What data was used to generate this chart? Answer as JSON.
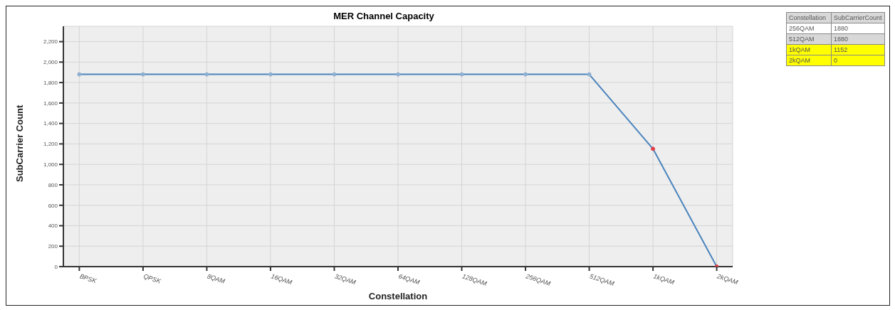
{
  "chart_data": {
    "type": "line",
    "title": "MER Channel Capacity",
    "xlabel": "Constellation",
    "ylabel": "SubCarrier Count",
    "categories": [
      "BPSK",
      "QPSK",
      "8QAM",
      "16QAM",
      "32QAM",
      "64QAM",
      "128QAM",
      "256QAM",
      "512QAM",
      "1kQAM",
      "2kQAM"
    ],
    "series": [
      {
        "color": "#4a84bd",
        "values": [
          1880,
          1880,
          1880,
          1880,
          1880,
          1880,
          1880,
          1880,
          1880,
          1152,
          0
        ],
        "colors": [
          "#8fb0d0",
          "#8fb0d0",
          "#8fb0d0",
          "#8fb0d0",
          "#8fb0d0",
          "#8fb0d0",
          "#8fb0d0",
          "#8fb0d0",
          "#8fb0d0",
          "#e0404a",
          "#e0404a"
        ]
      }
    ],
    "annotations": [
      "Constellation",
      "SubCarrierCount",
      "256QAM",
      "1880",
      "512QAM",
      "1880",
      "1kQAM",
      "1152",
      "2kQAM",
      "0"
    ],
    "ylim": [
      0,
      2350
    ],
    "yticks": [
      {
        "value": 0,
        "label": "0"
      },
      {
        "value": 200,
        "label": "200"
      },
      {
        "value": 400,
        "label": "400"
      },
      {
        "value": 600,
        "label": "600"
      },
      {
        "value": 800,
        "label": "800"
      },
      {
        "value": 1000,
        "label": "1,000"
      },
      {
        "value": 1200,
        "label": "1,200"
      },
      {
        "value": 1400,
        "label": "1,400"
      },
      {
        "value": 1600,
        "label": "1,600"
      },
      {
        "value": 1800,
        "label": "1,800"
      },
      {
        "value": 2000,
        "label": "2,000"
      },
      {
        "value": 2200,
        "label": "2,200"
      }
    ],
    "grid": true,
    "legend": false,
    "marker": "circle",
    "line_style": "solid"
  }
}
